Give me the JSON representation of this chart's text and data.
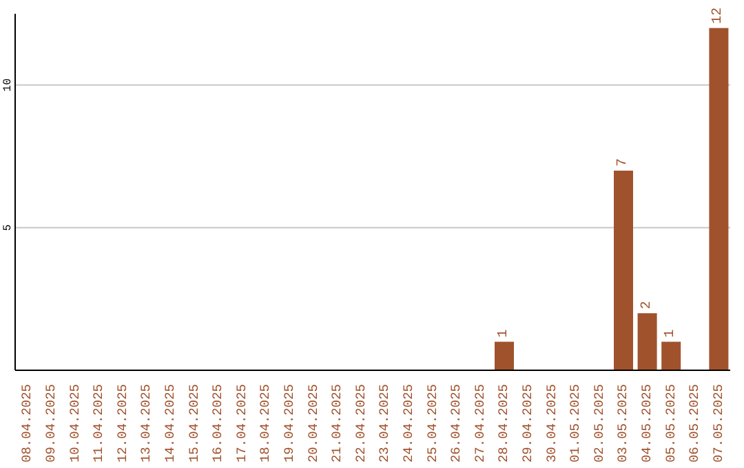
{
  "chart_data": {
    "type": "bar",
    "categories": [
      "08.04.2025",
      "09.04.2025",
      "10.04.2025",
      "11.04.2025",
      "12.04.2025",
      "13.04.2025",
      "14.04.2025",
      "15.04.2025",
      "16.04.2025",
      "17.04.2025",
      "18.04.2025",
      "19.04.2025",
      "20.04.2025",
      "21.04.2025",
      "22.04.2025",
      "23.04.2025",
      "24.04.2025",
      "25.04.2025",
      "26.04.2025",
      "27.04.2025",
      "28.04.2025",
      "29.04.2025",
      "30.04.2025",
      "01.05.2025",
      "02.05.2025",
      "03.05.2025",
      "04.05.2025",
      "05.05.2025",
      "06.05.2025",
      "07.05.2025"
    ],
    "values": [
      0,
      0,
      0,
      0,
      0,
      0,
      0,
      0,
      0,
      0,
      0,
      0,
      0,
      0,
      0,
      0,
      0,
      0,
      0,
      0,
      1,
      0,
      0,
      0,
      0,
      7,
      2,
      1,
      0,
      12
    ],
    "value_labels": [
      null,
      null,
      null,
      null,
      null,
      null,
      null,
      null,
      null,
      null,
      null,
      null,
      null,
      null,
      null,
      null,
      null,
      null,
      null,
      null,
      "1",
      null,
      null,
      null,
      null,
      "7",
      "2",
      "1",
      null,
      "12"
    ],
    "color": "#a0522d",
    "ylim": [
      0,
      12.5
    ],
    "yticks": [
      5,
      10
    ],
    "grid": "y"
  }
}
